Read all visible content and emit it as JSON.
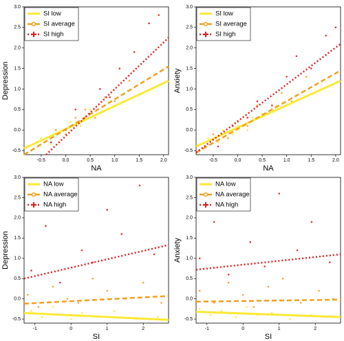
{
  "chart_data": [
    {
      "type": "scatter",
      "x_label": "NA",
      "y_label": "Depression",
      "xlim": [
        -0.85,
        2.1
      ],
      "ylim": [
        -0.6,
        3.0
      ],
      "xticks": [
        -0.5,
        {
          "value": 0,
          "label": "0.0"
        },
        0.5,
        {
          "value": 1,
          "label": "1.0"
        },
        1.5,
        {
          "value": 2,
          "label": "2.0"
        }
      ],
      "yticks": [
        -0.5,
        {
          "value": 0,
          "label": "0.0"
        },
        0.5,
        {
          "value": 1,
          "label": "1.0"
        },
        1.5,
        {
          "value": 2,
          "label": "2.0"
        },
        2.5,
        {
          "value": 3,
          "label": "3.0"
        }
      ],
      "legend": "top-left",
      "series": [
        {
          "name": "SI low",
          "color": "#fbe935",
          "marker": "none",
          "line_style": "solid",
          "x": [
            -0.8,
            -0.6,
            -0.5,
            -0.3,
            -0.2,
            0,
            0.1,
            0.3,
            0.5,
            0.7
          ],
          "values": [
            -0.4,
            -0.3,
            -0.2,
            -0.35,
            0,
            -0.1,
            0.2,
            0.1,
            0.5,
            0.4
          ],
          "fit_x": [
            -0.85,
            2.1
          ],
          "fit_values": [
            -0.45,
            1.2
          ]
        },
        {
          "name": "SI average",
          "color": "#f0a01e",
          "marker": "circle",
          "line_style": "dashed",
          "x": [
            -0.7,
            -0.4,
            -0.2,
            0,
            0.2,
            0.4,
            0.6,
            0.8,
            1.0,
            1.3
          ],
          "values": [
            -0.5,
            -0.2,
            0,
            -0.1,
            0.3,
            0.5,
            0.3,
            0.8,
            0.7,
            1.2
          ],
          "fit_x": [
            -0.85,
            2.1
          ],
          "fit_values": [
            -0.6,
            1.55
          ]
        },
        {
          "name": "SI high",
          "color": "#dc2020",
          "marker": "plus",
          "line_style": "dotted",
          "x": [
            -0.3,
            0,
            0.2,
            0.5,
            0.7,
            0.9,
            1.1,
            1.4,
            1.7,
            1.9
          ],
          "values": [
            -0.3,
            0,
            0.5,
            0.4,
            1.0,
            0.8,
            1.5,
            1.9,
            2.6,
            2.8
          ],
          "fit_x": [
            -0.4,
            2.1
          ],
          "fit_values": [
            -0.6,
            2.25
          ]
        }
      ]
    },
    {
      "type": "scatter",
      "x_label": "NA",
      "y_label": "Anxiety",
      "xlim": [
        -0.85,
        2.1
      ],
      "ylim": [
        -0.6,
        3.0
      ],
      "xticks": [
        -0.5,
        {
          "value": 0,
          "label": "0.0"
        },
        0.5,
        {
          "value": 1,
          "label": "1.0"
        },
        1.5,
        {
          "value": 2,
          "label": "2.0"
        }
      ],
      "yticks": [
        -0.5,
        {
          "value": 0,
          "label": "0.0"
        },
        0.5,
        {
          "value": 1,
          "label": "1.0"
        },
        1.5,
        {
          "value": 2,
          "label": "2.0"
        },
        2.5,
        {
          "value": 3,
          "label": "3.0"
        }
      ],
      "legend": "top-left",
      "series": [
        {
          "name": "SI low",
          "color": "#fbe935",
          "marker": "none",
          "line_style": "solid",
          "x": [
            -0.8,
            -0.6,
            -0.4,
            -0.3,
            -0.1,
            0,
            0.2,
            0.3,
            0.5,
            0.8
          ],
          "values": [
            -0.35,
            -0.2,
            -0.3,
            0,
            -0.1,
            0.1,
            0,
            0.3,
            0.4,
            0.6
          ],
          "fit_x": [
            -0.85,
            2.1
          ],
          "fit_values": [
            -0.4,
            1.2
          ]
        },
        {
          "name": "SI average",
          "color": "#f0a01e",
          "marker": "circle",
          "line_style": "dashed",
          "x": [
            -0.7,
            -0.5,
            -0.2,
            0,
            0.2,
            0.4,
            0.6,
            0.9,
            1.1,
            1.4
          ],
          "values": [
            -0.45,
            -0.1,
            -0.2,
            0.2,
            0.1,
            0.6,
            0.4,
            0.9,
            0.7,
            1.3
          ],
          "fit_x": [
            -0.85,
            2.1
          ],
          "fit_values": [
            -0.55,
            1.45
          ]
        },
        {
          "name": "SI high",
          "color": "#dc2020",
          "marker": "plus",
          "line_style": "dotted",
          "x": [
            -0.4,
            -0.1,
            0.2,
            0.4,
            0.7,
            1.0,
            1.2,
            1.5,
            1.8,
            2.0
          ],
          "values": [
            -0.4,
            0.1,
            0.3,
            0.7,
            0.6,
            1.3,
            1.8,
            1.5,
            2.3,
            2.5
          ],
          "fit_x": [
            -0.85,
            2.1
          ],
          "fit_values": [
            -0.55,
            2.1
          ]
        }
      ]
    },
    {
      "type": "scatter",
      "x_label": "SI",
      "y_label": "Depression",
      "xlim": [
        -1.3,
        2.7
      ],
      "ylim": [
        -0.6,
        3.0
      ],
      "xticks": [
        -1,
        0,
        1,
        2
      ],
      "yticks": [
        -0.5,
        {
          "value": 0,
          "label": "0.0"
        },
        0.5,
        {
          "value": 1,
          "label": "1.0"
        },
        1.5,
        {
          "value": 2,
          "label": "2.0"
        },
        2.5,
        {
          "value": 3,
          "label": "3.0"
        }
      ],
      "legend": "top-left",
      "series": [
        {
          "name": "NA low",
          "color": "#fbe935",
          "marker": "none",
          "line_style": "solid",
          "x": [
            -1.1,
            -0.8,
            -0.5,
            -0.2,
            0,
            0.3,
            0.7,
            1.2,
            1.8,
            2.4
          ],
          "values": [
            -0.3,
            -0.45,
            -0.2,
            -0.4,
            -0.5,
            -0.35,
            -0.45,
            -0.3,
            -0.5,
            -0.45
          ],
          "fit_x": [
            -1.3,
            2.7
          ],
          "fit_values": [
            -0.35,
            -0.52
          ]
        },
        {
          "name": "NA average",
          "color": "#f0a01e",
          "marker": "circle",
          "line_style": "dashed",
          "x": [
            -1.2,
            -0.9,
            -0.5,
            -0.1,
            0.2,
            0.6,
            1.0,
            1.5,
            2.0,
            2.5
          ],
          "values": [
            0.1,
            -0.2,
            0.3,
            0,
            -0.1,
            0.5,
            0.2,
            0,
            0.4,
            -0.1
          ],
          "fit_x": [
            -1.3,
            2.7
          ],
          "fit_values": [
            -0.12,
            0.07
          ]
        },
        {
          "name": "NA high",
          "color": "#dc2020",
          "marker": "plus",
          "line_style": "dotted",
          "x": [
            -1.1,
            -0.7,
            -0.3,
            0,
            0.3,
            0.6,
            1.0,
            1.4,
            1.9,
            2.3
          ],
          "values": [
            0.7,
            1.8,
            0.4,
            2.5,
            1.2,
            0.9,
            2.2,
            1.6,
            2.8,
            1.1
          ],
          "fit_x": [
            -1.3,
            2.7
          ],
          "fit_values": [
            0.5,
            1.33
          ]
        }
      ]
    },
    {
      "type": "scatter",
      "x_label": "SI",
      "y_label": "Anxiety",
      "xlim": [
        -1.3,
        2.7
      ],
      "ylim": [
        -0.6,
        3.0
      ],
      "xticks": [
        -1,
        0,
        1,
        2
      ],
      "yticks": [
        -0.5,
        {
          "value": 0,
          "label": "0.0"
        },
        0.5,
        {
          "value": 1,
          "label": "1.0"
        },
        1.5,
        {
          "value": 2,
          "label": "2.0"
        },
        2.5,
        {
          "value": 3,
          "label": "3.0"
        }
      ],
      "legend": "top-left",
      "series": [
        {
          "name": "NA low",
          "color": "#fbe935",
          "marker": "none",
          "line_style": "solid",
          "x": [
            -1.2,
            -0.9,
            -0.6,
            -0.2,
            0.1,
            0.4,
            0.8,
            1.3,
            1.9,
            2.3
          ],
          "values": [
            -0.25,
            -0.4,
            -0.3,
            -0.45,
            -0.2,
            -0.4,
            -0.35,
            -0.5,
            -0.4,
            -0.45
          ],
          "fit_x": [
            -1.3,
            2.7
          ],
          "fit_values": [
            -0.32,
            -0.45
          ]
        },
        {
          "name": "NA average",
          "color": "#f0a01e",
          "marker": "circle",
          "line_style": "dashed",
          "x": [
            -1.2,
            -0.8,
            -0.4,
            0,
            0.3,
            0.7,
            1.1,
            1.6,
            2.1,
            2.5
          ],
          "values": [
            0.2,
            -0.1,
            0.4,
            0.1,
            -0.2,
            0.3,
            0.5,
            -0.1,
            0.2,
            0
          ],
          "fit_x": [
            -1.3,
            2.7
          ],
          "fit_values": [
            -0.07,
            -0.02
          ]
        },
        {
          "name": "NA high",
          "color": "#dc2020",
          "marker": "plus",
          "line_style": "dotted",
          "x": [
            -1.2,
            -0.8,
            -0.4,
            0,
            0.2,
            0.6,
            1.0,
            1.5,
            1.9,
            2.4
          ],
          "values": [
            1.0,
            1.9,
            0.6,
            2.2,
            1.4,
            0.8,
            2.6,
            1.2,
            1.9,
            0.9
          ],
          "fit_x": [
            -1.3,
            2.7
          ],
          "fit_values": [
            0.72,
            1.1
          ]
        }
      ]
    }
  ]
}
